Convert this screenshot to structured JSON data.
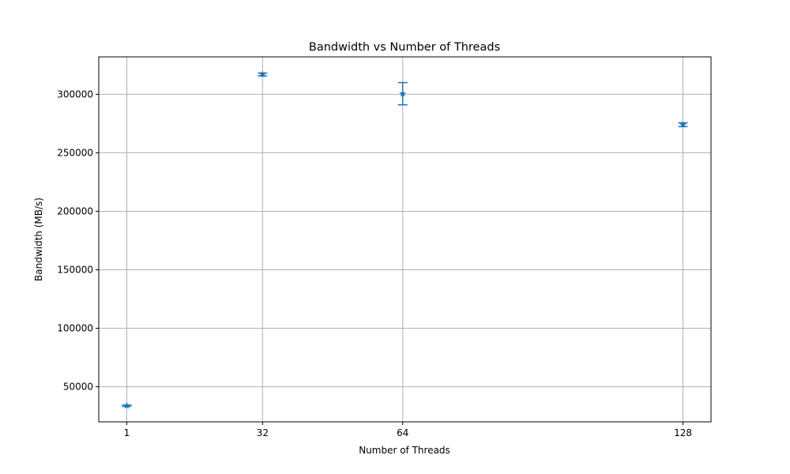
{
  "chart_data": {
    "type": "scatter",
    "title": "Bandwidth vs Number of Threads",
    "xlabel": "Number of Threads",
    "ylabel": "Bandwidth (MB/s)",
    "x_ticks": [
      1,
      32,
      64,
      128
    ],
    "y_ticks": [
      50000,
      100000,
      150000,
      200000,
      250000,
      300000
    ],
    "xlim": [
      -5.4,
      134.4
    ],
    "ylim": [
      20000,
      332000
    ],
    "grid": true,
    "marker": "star",
    "color": "#1f77b4",
    "series": [
      {
        "points": [
          {
            "x": 1,
            "y": 33800,
            "error": 600
          },
          {
            "x": 32,
            "y": 317000,
            "error": 1200
          },
          {
            "x": 64,
            "y": 300500,
            "error": 9500
          },
          {
            "x": 128,
            "y": 274000,
            "error": 1600
          }
        ]
      }
    ]
  }
}
